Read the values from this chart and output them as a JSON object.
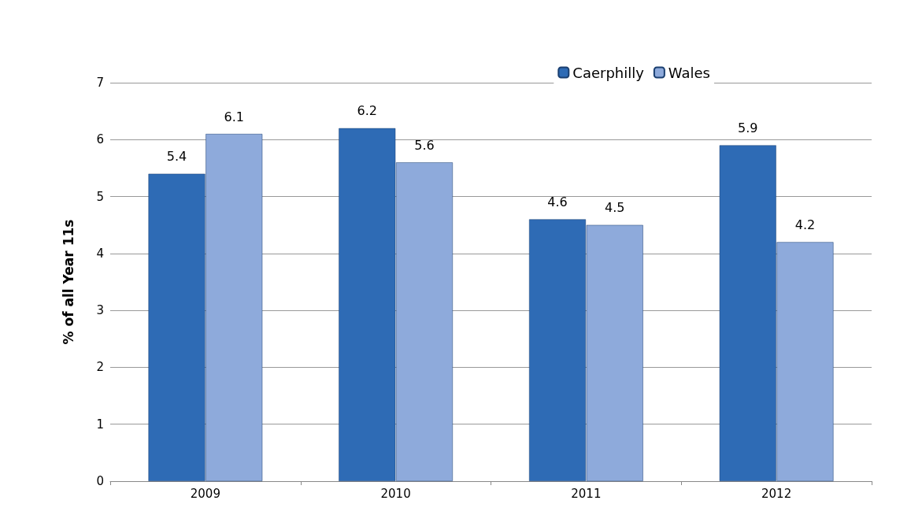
{
  "chart_data": {
    "type": "bar",
    "ylabel": "% of all Year 11s",
    "categories": [
      "2009",
      "2010",
      "2011",
      "2012"
    ],
    "series": [
      {
        "name": "Caerphilly",
        "color": "#2e6bb5",
        "values": [
          5.4,
          6.2,
          4.6,
          5.9
        ]
      },
      {
        "name": "Wales",
        "color": "#8eaadb",
        "values": [
          6.1,
          5.6,
          4.5,
          4.2
        ]
      }
    ],
    "ylim": [
      0,
      7
    ],
    "yticks": [
      0,
      1,
      2,
      3,
      4,
      5,
      6,
      7
    ],
    "grid": "y",
    "legend": "top right",
    "data_labels": true
  }
}
